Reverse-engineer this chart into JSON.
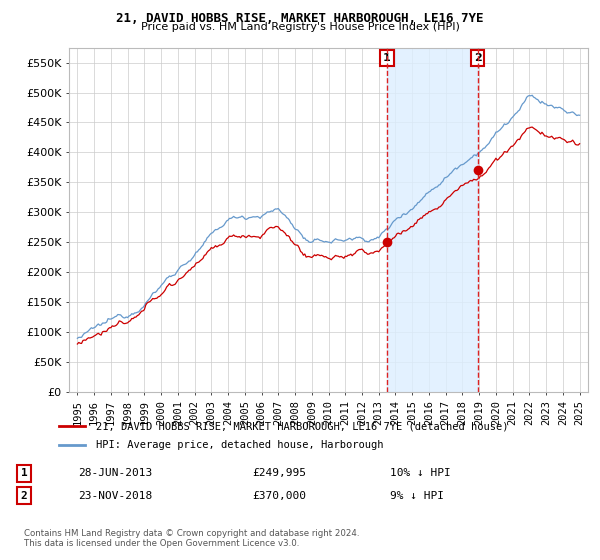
{
  "title": "21, DAVID HOBBS RISE, MARKET HARBOROUGH, LE16 7YE",
  "subtitle": "Price paid vs. HM Land Registry's House Price Index (HPI)",
  "legend_entry1": "21, DAVID HOBBS RISE, MARKET HARBOROUGH, LE16 7YE (detached house)",
  "legend_entry2": "HPI: Average price, detached house, Harborough",
  "footer1": "Contains HM Land Registry data © Crown copyright and database right 2024.",
  "footer2": "This data is licensed under the Open Government Licence v3.0.",
  "sale1_x": 2013.49,
  "sale1_price": 249995,
  "sale2_x": 2018.9,
  "sale2_price": 370000,
  "price_line_color": "#cc0000",
  "hpi_line_color": "#6699cc",
  "shade_color": "#ddeeff",
  "annotation_line_color": "#dd2222",
  "ylim_min": 0,
  "ylim_max": 575000,
  "xlim_min": 1994.5,
  "xlim_max": 2025.5,
  "background_color": "#ffffff",
  "grid_color": "#cccccc",
  "title_fontsize": 9,
  "subtitle_fontsize": 8
}
